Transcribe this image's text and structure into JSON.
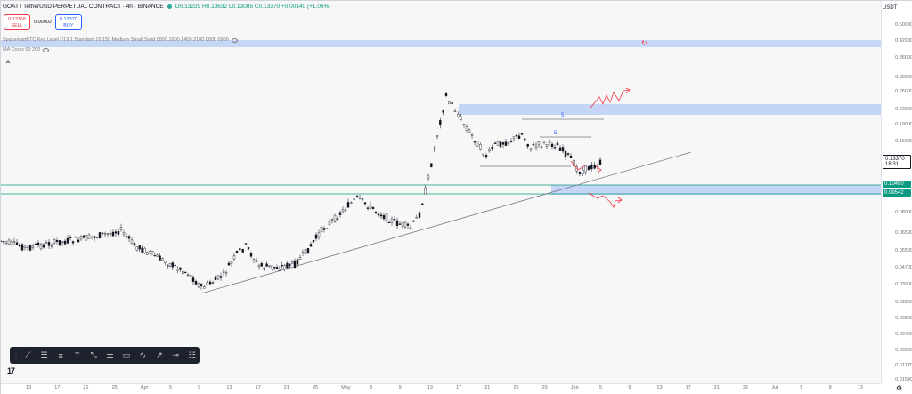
{
  "header": {
    "symbol": "GOAT / TetherUSD PERPETUAL CONTRACT · 4h · BINANCE",
    "ohlc": "O0.13229 H0.13632 L0.13085 C0.13370 +0.00140 (+1.06%)",
    "sell_price": "0.13368",
    "sell_label": "SELL",
    "spread": "0.00002",
    "buy_price": "0.13370",
    "buy_label": "BUY"
  },
  "indicators": [
    "SpacemanBTC Key Level V13.1 Standard 15 150 Medium Small Solid 0800 1600 1400 2100 0800 0900",
    "MA Cross 50 200"
  ],
  "price_scale": {
    "currency": "USDT",
    "labels": [
      "0.50000",
      "0.42000",
      "0.36000",
      "0.30000",
      "0.26000",
      "0.22000",
      "0.19000",
      "0.16000",
      "0.13370",
      "0.10480",
      "0.09542",
      "0.08000",
      "0.06500",
      "0.05500",
      "0.04700",
      "0.03900",
      "0.03300",
      "0.02800",
      "0.02400",
      "0.02000",
      "0.01770",
      "0.01540"
    ],
    "current_price": "0.13370",
    "countdown": "18:31",
    "level_1": "0.10480",
    "level_2": "0.09542"
  },
  "time_scale": {
    "labels": [
      "13",
      "17",
      "21",
      "25",
      "Apr",
      "5",
      "9",
      "13",
      "17",
      "21",
      "25",
      "May",
      "5",
      "9",
      "13",
      "17",
      "21",
      "25",
      "29",
      "Jun",
      "5",
      "9",
      "13",
      "17",
      "21",
      "25",
      "Jul",
      "5",
      "9",
      "13"
    ]
  },
  "annotations": {
    "marker_1": "5",
    "marker_2": "5"
  },
  "toolbar": {
    "tools": [
      "cursor-tool",
      "trendline-tool",
      "fib-tool",
      "text-tool",
      "pattern-tool",
      "measure-tool",
      "rectangle-tool",
      "brush-tool",
      "arrow-tool",
      "horizontal-line-tool",
      "position-tool"
    ]
  },
  "colors": {
    "up": "#089981",
    "down": "#f23645",
    "zone": "#bfd0f5",
    "line": "#131722"
  }
}
